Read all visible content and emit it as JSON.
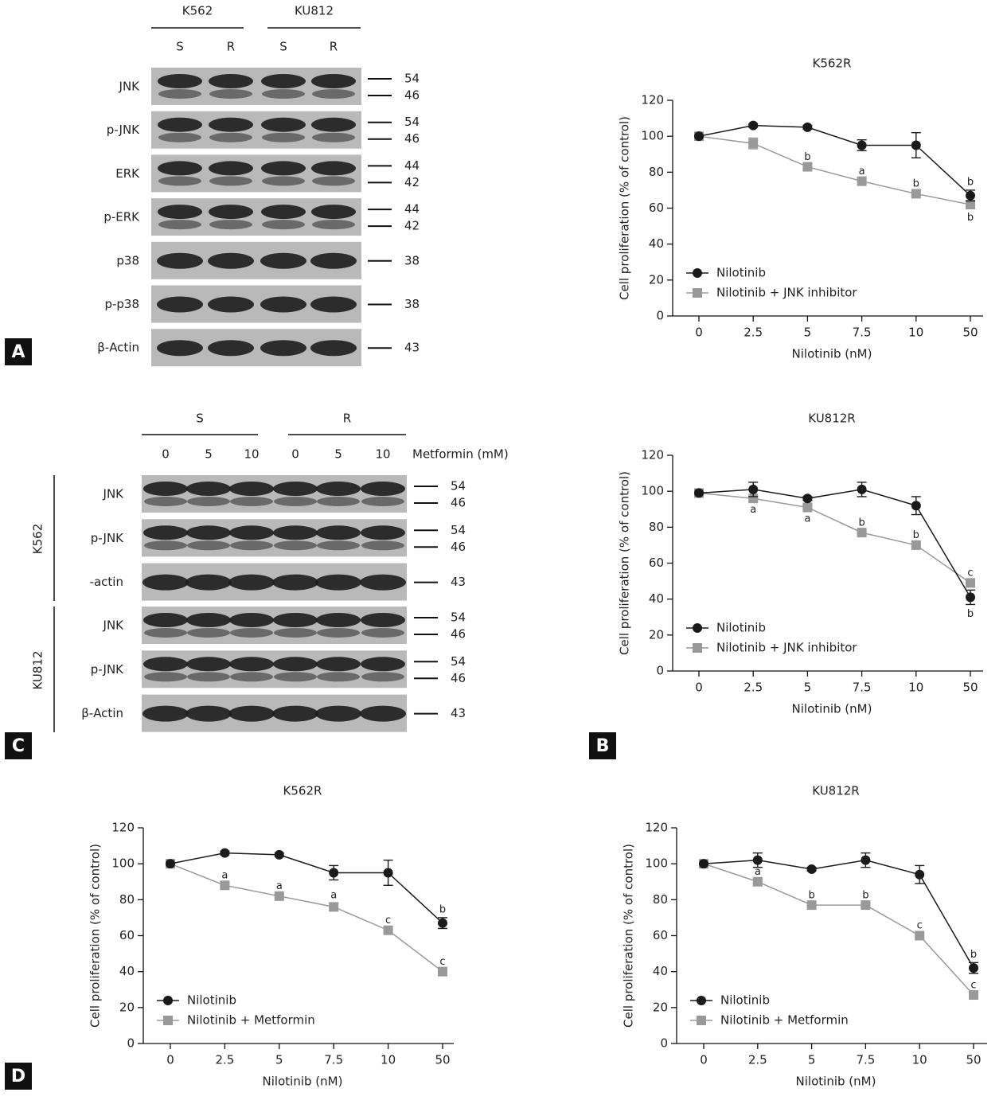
{
  "panel_labels": [
    "A",
    "B",
    "C",
    "D"
  ],
  "blot_a": {
    "groups": [
      "K562",
      "KU812"
    ],
    "lanes": [
      "S",
      "R",
      "S",
      "R"
    ],
    "rows": [
      {
        "label": "JNK",
        "markers": [
          54,
          46
        ]
      },
      {
        "label": "p-JNK",
        "markers": [
          54,
          46
        ]
      },
      {
        "label": "ERK",
        "markers": [
          44,
          42
        ]
      },
      {
        "label": "p-ERK",
        "markers": [
          44,
          42
        ]
      },
      {
        "label": "p38",
        "markers": [
          38
        ]
      },
      {
        "label": "p-p38",
        "markers": [
          38
        ]
      },
      {
        "label": "β-Actin",
        "markers": [
          43
        ]
      }
    ]
  },
  "blot_c": {
    "groups": [
      "S",
      "R"
    ],
    "lanes": [
      "0",
      "5",
      "10",
      "0",
      "5",
      "10"
    ],
    "lane_title": "Metformin (mM)",
    "cell_lines": [
      {
        "name": "K562",
        "rows": [
          {
            "label": "JNK",
            "markers": [
              54,
              46
            ]
          },
          {
            "label": "p-JNK",
            "markers": [
              54,
              46
            ]
          },
          {
            "label": "-actin",
            "markers": [
              43
            ]
          }
        ]
      },
      {
        "name": "KU812",
        "rows": [
          {
            "label": "JNK",
            "markers": [
              54,
              46
            ]
          },
          {
            "label": "p-JNK",
            "markers": [
              54,
              46
            ]
          },
          {
            "label": "β-Actin",
            "markers": [
              43
            ]
          }
        ]
      }
    ]
  },
  "chart_data": [
    {
      "type": "line",
      "title": "K562R",
      "x_label": "Nilotinib (nM)",
      "y_label": "Cell proliferation (% of control)",
      "categories": [
        "0",
        "2.5",
        "5",
        "7.5",
        "10",
        "50"
      ],
      "ylim": [
        0,
        120
      ],
      "yticks": [
        0,
        20,
        40,
        60,
        80,
        100,
        120
      ],
      "legend": "lower left",
      "series": [
        {
          "name": "Nilotinib",
          "color": "#1a1a1a",
          "marker": "circle",
          "values": [
            100,
            106,
            105,
            95,
            95,
            67
          ],
          "errors": [
            0,
            1,
            1,
            3,
            7,
            3
          ],
          "annotations": [
            null,
            null,
            null,
            null,
            null,
            "b"
          ],
          "annotation_sides": [
            null,
            null,
            null,
            null,
            null,
            "above"
          ]
        },
        {
          "name": "Nilotinib + JNK inhibitor",
          "color": "#999999",
          "marker": "square",
          "values": [
            100,
            96,
            83,
            75,
            68,
            62
          ],
          "errors": [
            0,
            3,
            1,
            1,
            1,
            2
          ],
          "annotations": [
            null,
            null,
            "b",
            "a",
            "b",
            "b"
          ],
          "annotation_sides": [
            null,
            null,
            "above",
            "above",
            "above",
            "below"
          ]
        }
      ]
    },
    {
      "type": "line",
      "title": "KU812R",
      "x_label": "Nilotinib (nM)",
      "y_label": "Cell proliferation (% of control)",
      "categories": [
        "0",
        "2.5",
        "5",
        "7.5",
        "10",
        "50"
      ],
      "ylim": [
        0,
        120
      ],
      "yticks": [
        0,
        20,
        40,
        60,
        80,
        100,
        120
      ],
      "legend": "lower left",
      "series": [
        {
          "name": "Nilotinib",
          "color": "#1a1a1a",
          "marker": "circle",
          "values": [
            99,
            101,
            96,
            101,
            92,
            41
          ],
          "errors": [
            0,
            4,
            1,
            4,
            5,
            4
          ],
          "annotations": [
            null,
            null,
            null,
            null,
            null,
            "b"
          ],
          "annotation_sides": [
            null,
            null,
            null,
            null,
            null,
            "below"
          ]
        },
        {
          "name": "Nilotinib + JNK inhibitor",
          "color": "#999999",
          "marker": "square",
          "values": [
            99,
            96,
            91,
            77,
            70,
            49
          ],
          "errors": [
            0,
            1,
            1,
            1,
            1,
            1
          ],
          "annotations": [
            null,
            "a",
            "a",
            "b",
            "b",
            "c"
          ],
          "annotation_sides": [
            null,
            "below",
            "below",
            "above",
            "above",
            "above"
          ]
        }
      ]
    },
    {
      "type": "line",
      "title": "K562R",
      "x_label": "Nilotinib (nM)",
      "y_label": "Cell proliferation (% of control)",
      "categories": [
        "0",
        "2.5",
        "5",
        "7.5",
        "10",
        "50"
      ],
      "ylim": [
        0,
        120
      ],
      "yticks": [
        0,
        20,
        40,
        60,
        80,
        100,
        120
      ],
      "legend": "lower left",
      "series": [
        {
          "name": "Nilotinib",
          "color": "#1a1a1a",
          "marker": "circle",
          "values": [
            100,
            106,
            105,
            95,
            95,
            67
          ],
          "errors": [
            0,
            1,
            1,
            4,
            7,
            3
          ],
          "annotations": [
            null,
            null,
            null,
            null,
            null,
            "b"
          ],
          "annotation_sides": [
            null,
            null,
            null,
            null,
            null,
            "above"
          ]
        },
        {
          "name": "Nilotinib + Metformin",
          "color": "#999999",
          "marker": "square",
          "values": [
            100,
            88,
            82,
            76,
            63,
            40
          ],
          "errors": [
            0,
            1,
            1,
            2,
            1,
            1
          ],
          "annotations": [
            null,
            "a",
            "a",
            "a",
            "c",
            "c"
          ],
          "annotation_sides": [
            null,
            "above",
            "above",
            "above",
            "above",
            "above"
          ]
        }
      ]
    },
    {
      "type": "line",
      "title": "KU812R",
      "x_label": "Nilotinib (nM)",
      "y_label": "Cell proliferation (% of control)",
      "categories": [
        "0",
        "2.5",
        "5",
        "7.5",
        "10",
        "50"
      ],
      "ylim": [
        0,
        120
      ],
      "yticks": [
        0,
        20,
        40,
        60,
        80,
        100,
        120
      ],
      "legend": "lower left",
      "series": [
        {
          "name": "Nilotinib",
          "color": "#1a1a1a",
          "marker": "circle",
          "values": [
            100,
            102,
            97,
            102,
            94,
            42
          ],
          "errors": [
            0,
            4,
            1,
            4,
            5,
            3
          ],
          "annotations": [
            null,
            null,
            null,
            null,
            null,
            "b"
          ],
          "annotation_sides": [
            null,
            null,
            null,
            null,
            null,
            "above"
          ]
        },
        {
          "name": "Nilotinib + Metformin",
          "color": "#999999",
          "marker": "square",
          "values": [
            100,
            90,
            77,
            77,
            60,
            27
          ],
          "errors": [
            0,
            1,
            1,
            1,
            1,
            1
          ],
          "annotations": [
            null,
            "a",
            "b",
            "b",
            "c",
            "c"
          ],
          "annotation_sides": [
            null,
            "above",
            "above",
            "above",
            "above",
            "above"
          ]
        }
      ]
    }
  ]
}
